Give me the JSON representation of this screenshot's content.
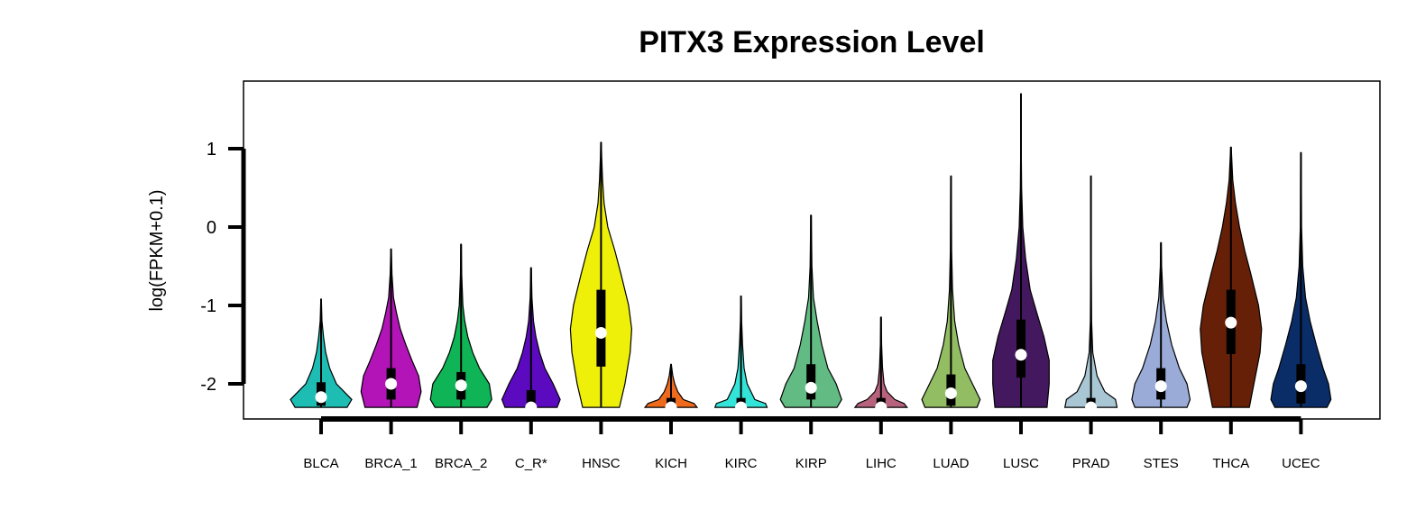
{
  "chart_data": {
    "type": "violin",
    "title": "PITX3 Expression Level",
    "ylabel": "log(FPKM+0.1)",
    "xlabel": "",
    "ylim": [
      -2.45,
      1.85
    ],
    "yticks": [
      1,
      0,
      -1,
      -2
    ],
    "grid": false,
    "legend": "none",
    "categories": [
      "BLCA",
      "BRCA_1",
      "BRCA_2",
      "C_R*",
      "HNSC",
      "KICH",
      "KIRC",
      "KIRP",
      "LIHC",
      "LUAD",
      "LUSC",
      "PRAD",
      "STES",
      "THCA",
      "UCEC"
    ],
    "colors": [
      "#1dbdb3",
      "#b314b8",
      "#0fb456",
      "#5c0ac0",
      "#eef00a",
      "#ee6a1c",
      "#33e5d9",
      "#63bb84",
      "#b8637e",
      "#93bd62",
      "#44185e",
      "#a8c6d3",
      "#99abd6",
      "#662008",
      "#0a2d67"
    ],
    "series": [
      {
        "min": -2.3,
        "q1": -2.28,
        "median": -2.17,
        "q3": -1.98,
        "max": -0.92,
        "shape": [
          [
            -2.3,
            0.85
          ],
          [
            -2.2,
            1.0
          ],
          [
            -2.1,
            0.75
          ],
          [
            -2.0,
            0.5
          ],
          [
            -1.8,
            0.28
          ],
          [
            -1.6,
            0.15
          ],
          [
            -1.4,
            0.08
          ],
          [
            -1.2,
            0.03
          ],
          [
            -0.92,
            0.01
          ]
        ]
      },
      {
        "min": -2.3,
        "q1": -2.2,
        "median": -2.0,
        "q3": -1.8,
        "max": -0.28,
        "shape": [
          [
            -2.3,
            0.85
          ],
          [
            -2.1,
            0.98
          ],
          [
            -1.9,
            0.9
          ],
          [
            -1.7,
            0.68
          ],
          [
            -1.5,
            0.48
          ],
          [
            -1.3,
            0.3
          ],
          [
            -1.1,
            0.18
          ],
          [
            -0.9,
            0.08
          ],
          [
            -0.6,
            0.03
          ],
          [
            -0.28,
            0.01
          ]
        ]
      },
      {
        "min": -2.3,
        "q1": -2.2,
        "median": -2.02,
        "q3": -1.85,
        "max": -0.22,
        "shape": [
          [
            -2.3,
            0.85
          ],
          [
            -2.2,
            1.0
          ],
          [
            -2.0,
            0.92
          ],
          [
            -1.8,
            0.6
          ],
          [
            -1.6,
            0.38
          ],
          [
            -1.4,
            0.22
          ],
          [
            -1.2,
            0.12
          ],
          [
            -1.0,
            0.06
          ],
          [
            -0.6,
            0.02
          ],
          [
            -0.22,
            0.01
          ]
        ]
      },
      {
        "min": -2.3,
        "q1": -2.3,
        "median": -2.3,
        "q3": -2.08,
        "max": -0.52,
        "shape": [
          [
            -2.3,
            0.85
          ],
          [
            -2.2,
            0.95
          ],
          [
            -2.0,
            0.72
          ],
          [
            -1.8,
            0.45
          ],
          [
            -1.6,
            0.28
          ],
          [
            -1.4,
            0.16
          ],
          [
            -1.2,
            0.08
          ],
          [
            -0.9,
            0.03
          ],
          [
            -0.52,
            0.01
          ]
        ]
      },
      {
        "min": -2.3,
        "q1": -1.78,
        "median": -1.35,
        "q3": -0.8,
        "max": 1.08,
        "shape": [
          [
            -2.3,
            0.6
          ],
          [
            -2.0,
            0.78
          ],
          [
            -1.6,
            0.95
          ],
          [
            -1.3,
            1.0
          ],
          [
            -1.0,
            0.9
          ],
          [
            -0.6,
            0.65
          ],
          [
            -0.3,
            0.45
          ],
          [
            0.0,
            0.22
          ],
          [
            0.3,
            0.1
          ],
          [
            0.6,
            0.05
          ],
          [
            0.9,
            0.02
          ],
          [
            1.08,
            0.01
          ]
        ]
      },
      {
        "min": -2.3,
        "q1": -2.3,
        "median": -2.3,
        "q3": -2.18,
        "max": -1.75,
        "shape": [
          [
            -2.3,
            0.85
          ],
          [
            -2.25,
            0.75
          ],
          [
            -2.2,
            0.4
          ],
          [
            -2.1,
            0.22
          ],
          [
            -2.0,
            0.12
          ],
          [
            -1.9,
            0.06
          ],
          [
            -1.75,
            0.01
          ]
        ]
      },
      {
        "min": -2.3,
        "q1": -2.3,
        "median": -2.3,
        "q3": -2.18,
        "max": -0.88,
        "shape": [
          [
            -2.3,
            0.85
          ],
          [
            -2.25,
            0.8
          ],
          [
            -2.2,
            0.45
          ],
          [
            -2.0,
            0.2
          ],
          [
            -1.8,
            0.1
          ],
          [
            -1.5,
            0.05
          ],
          [
            -1.2,
            0.02
          ],
          [
            -0.88,
            0.01
          ]
        ]
      },
      {
        "min": -2.3,
        "q1": -2.2,
        "median": -2.05,
        "q3": -1.75,
        "max": 0.15,
        "shape": [
          [
            -2.3,
            0.85
          ],
          [
            -2.2,
            1.0
          ],
          [
            -2.0,
            0.82
          ],
          [
            -1.8,
            0.55
          ],
          [
            -1.5,
            0.35
          ],
          [
            -1.2,
            0.2
          ],
          [
            -0.9,
            0.08
          ],
          [
            -0.5,
            0.03
          ],
          [
            0.15,
            0.01
          ]
        ]
      },
      {
        "min": -2.3,
        "q1": -2.3,
        "median": -2.3,
        "q3": -2.18,
        "max": -1.15,
        "shape": [
          [
            -2.3,
            0.85
          ],
          [
            -2.25,
            0.75
          ],
          [
            -2.2,
            0.45
          ],
          [
            -2.1,
            0.2
          ],
          [
            -2.0,
            0.1
          ],
          [
            -1.8,
            0.05
          ],
          [
            -1.5,
            0.02
          ],
          [
            -1.15,
            0.01
          ]
        ]
      },
      {
        "min": -2.3,
        "q1": -2.28,
        "median": -2.12,
        "q3": -1.88,
        "max": 0.65,
        "shape": [
          [
            -2.3,
            0.85
          ],
          [
            -2.2,
            0.95
          ],
          [
            -2.0,
            0.7
          ],
          [
            -1.8,
            0.45
          ],
          [
            -1.5,
            0.25
          ],
          [
            -1.2,
            0.12
          ],
          [
            -0.8,
            0.05
          ],
          [
            -0.3,
            0.02
          ],
          [
            0.65,
            0.01
          ]
        ]
      },
      {
        "min": -2.3,
        "q1": -1.92,
        "median": -1.63,
        "q3": -1.18,
        "max": 1.7,
        "shape": [
          [
            -2.3,
            0.85
          ],
          [
            -2.0,
            0.92
          ],
          [
            -1.7,
            0.92
          ],
          [
            -1.4,
            0.75
          ],
          [
            -1.1,
            0.52
          ],
          [
            -0.8,
            0.3
          ],
          [
            -0.4,
            0.15
          ],
          [
            0.0,
            0.06
          ],
          [
            0.5,
            0.02
          ],
          [
            1.0,
            0.01
          ],
          [
            1.7,
            0.01
          ]
        ]
      },
      {
        "min": -2.3,
        "q1": -2.3,
        "median": -2.3,
        "q3": -2.18,
        "max": 0.65,
        "shape": [
          [
            -2.3,
            0.85
          ],
          [
            -2.2,
            0.8
          ],
          [
            -2.1,
            0.45
          ],
          [
            -1.9,
            0.2
          ],
          [
            -1.6,
            0.06
          ],
          [
            -1.2,
            0.02
          ],
          [
            -0.5,
            0.01
          ],
          [
            0.65,
            0.01
          ]
        ]
      },
      {
        "min": -2.3,
        "q1": -2.2,
        "median": -2.03,
        "q3": -1.8,
        "max": -0.2,
        "shape": [
          [
            -2.3,
            0.85
          ],
          [
            -2.2,
            0.95
          ],
          [
            -2.0,
            0.85
          ],
          [
            -1.8,
            0.6
          ],
          [
            -1.5,
            0.35
          ],
          [
            -1.2,
            0.18
          ],
          [
            -0.9,
            0.07
          ],
          [
            -0.5,
            0.02
          ],
          [
            -0.2,
            0.01
          ]
        ]
      },
      {
        "min": -2.3,
        "q1": -1.62,
        "median": -1.22,
        "q3": -0.8,
        "max": 1.02,
        "shape": [
          [
            -2.3,
            0.6
          ],
          [
            -2.0,
            0.75
          ],
          [
            -1.6,
            0.95
          ],
          [
            -1.3,
            1.0
          ],
          [
            -1.0,
            0.9
          ],
          [
            -0.6,
            0.65
          ],
          [
            -0.3,
            0.45
          ],
          [
            0.0,
            0.28
          ],
          [
            0.3,
            0.15
          ],
          [
            0.6,
            0.06
          ],
          [
            1.02,
            0.01
          ]
        ]
      },
      {
        "min": -2.3,
        "q1": -2.25,
        "median": -2.03,
        "q3": -1.75,
        "max": 0.95,
        "shape": [
          [
            -2.3,
            0.85
          ],
          [
            -2.2,
            0.98
          ],
          [
            -2.0,
            0.9
          ],
          [
            -1.8,
            0.72
          ],
          [
            -1.5,
            0.5
          ],
          [
            -1.2,
            0.3
          ],
          [
            -0.9,
            0.15
          ],
          [
            -0.5,
            0.06
          ],
          [
            0.0,
            0.02
          ],
          [
            0.95,
            0.01
          ]
        ]
      }
    ]
  }
}
